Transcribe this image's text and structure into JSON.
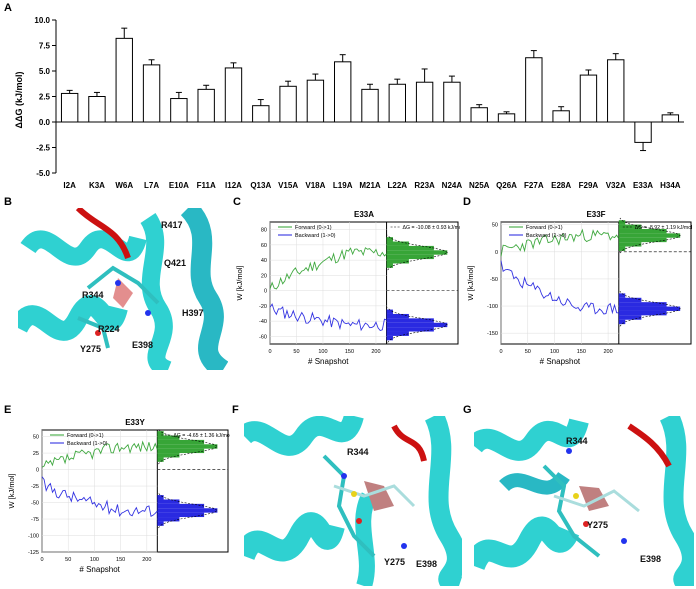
{
  "panels": {
    "A": "A",
    "B": "B",
    "C": "C",
    "D": "D",
    "E": "E",
    "F": "F",
    "G": "G"
  },
  "chart_data": [
    {
      "type": "bar",
      "panel": "A",
      "ylabel": "ΔΔG (kJ/mol)",
      "ylim": [
        -5.0,
        10.0
      ],
      "yticks": [
        "10.0",
        "7.5",
        "5.0",
        "2.5",
        "0.0",
        "-2.5",
        "-5.0"
      ],
      "categories": [
        "I2A",
        "K3A",
        "W6A",
        "L7A",
        "E10A",
        "F11A",
        "I12A",
        "Q13A",
        "V15A",
        "V18A",
        "L19A",
        "M21A",
        "L22A",
        "R23A",
        "N24A",
        "N25A",
        "Q26A",
        "F27A",
        "E28A",
        "F29A",
        "V32A",
        "E33A",
        "H34A"
      ],
      "values": [
        2.8,
        2.5,
        8.2,
        5.6,
        2.3,
        3.2,
        5.3,
        1.6,
        3.5,
        4.1,
        5.9,
        3.2,
        3.7,
        3.9,
        3.9,
        1.4,
        0.8,
        6.3,
        1.1,
        4.6,
        6.1,
        -2.0,
        0.7
      ],
      "errors": [
        0.3,
        0.4,
        1.0,
        0.5,
        0.6,
        0.4,
        0.5,
        0.6,
        0.5,
        0.6,
        0.7,
        0.5,
        0.5,
        1.3,
        0.6,
        0.3,
        0.2,
        0.7,
        0.4,
        0.5,
        0.6,
        0.8,
        0.2
      ],
      "grid": false
    },
    {
      "type": "line",
      "panel": "C",
      "title": "E33A",
      "xlabel": "# Snapshot",
      "ylabel": "W [kJ/mol]",
      "xlim": [
        0,
        220
      ],
      "ylim": [
        -70,
        90
      ],
      "xticks": [
        "0",
        "50",
        "100",
        "150",
        "200"
      ],
      "yticks": [
        "80",
        "60",
        "40",
        "20",
        "0",
        "-20",
        "-40",
        "-60"
      ],
      "legend": [
        "Forward (0->1)",
        "Backward (1->0)"
      ],
      "annotation": "ΔG = -10.08 ± 0.93 kJ/mol",
      "series": [
        {
          "name": "Forward (0->1)",
          "color": "#2ca02c",
          "start": 0,
          "end": 50
        },
        {
          "name": "Backward (1->0)",
          "color": "#1f1fdf",
          "start": -22,
          "end": -45
        }
      ]
    },
    {
      "type": "line",
      "panel": "D",
      "title": "E33F",
      "xlabel": "# Snapshot",
      "ylabel": "W [kJ/mol]",
      "xlim": [
        0,
        220
      ],
      "ylim": [
        -170,
        55
      ],
      "xticks": [
        "0",
        "50",
        "100",
        "150",
        "200"
      ],
      "yticks": [
        "50",
        "0",
        "-50",
        "-100",
        "-150"
      ],
      "legend": [
        "Forward (0->1)",
        "Backward (1->0)"
      ],
      "annotation": "ΔG = -8.92 ± 1.19 kJ/mol",
      "series": [
        {
          "name": "Forward (0->1)",
          "color": "#2ca02c",
          "start": 0,
          "end": 30
        },
        {
          "name": "Backward (1->0)",
          "color": "#1f1fdf",
          "start": -25,
          "end": -105
        }
      ]
    },
    {
      "type": "line",
      "panel": "E",
      "title": "E33Y",
      "xlabel": "# Snapshot",
      "ylabel": "W [kJ/mol]",
      "xlim": [
        0,
        220
      ],
      "ylim": [
        -125,
        60
      ],
      "xticks": [
        "0",
        "50",
        "100",
        "150",
        "200"
      ],
      "yticks": [
        "50",
        "25",
        "0",
        "-25",
        "-50",
        "-75",
        "-100",
        "-125"
      ],
      "legend": [
        "Forward (0->1)",
        "Backward (1->0)"
      ],
      "annotation": "ΔG = -4.65 ± 1.36 kJ/mol",
      "series": [
        {
          "name": "Forward (0->1)",
          "color": "#2ca02c",
          "start": 0,
          "end": 35
        },
        {
          "name": "Backward (1->0)",
          "color": "#1f1fdf",
          "start": -20,
          "end": -62
        }
      ]
    }
  ],
  "structures": {
    "B": [
      "R417",
      "Q421",
      "R344",
      "H397",
      "R224",
      "Y275",
      "E398"
    ],
    "F": [
      "R344",
      "Y275",
      "E398"
    ],
    "G": [
      "R344",
      "Y275",
      "E398"
    ]
  },
  "colors": {
    "bar": "#ffffff",
    "forward": "#2ca02c",
    "backward": "#1f1fdf",
    "helix": "#2fd1d1",
    "loop": "#cc1111",
    "ligand": "#e38e8e"
  }
}
